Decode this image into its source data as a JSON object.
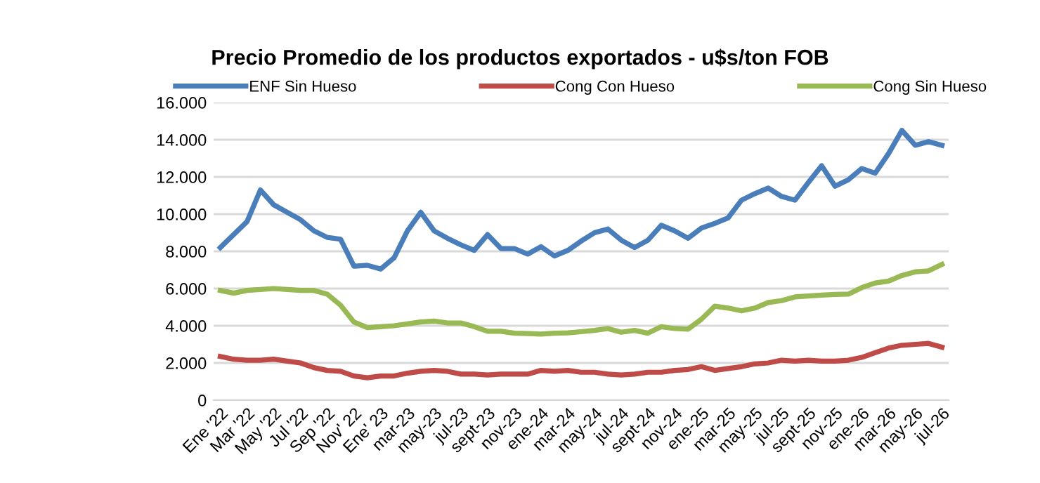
{
  "chart_data": {
    "type": "line",
    "title": "Precio Promedio de los productos exportados - u$s/ton FOB",
    "categories": [
      "Ene '22",
      null,
      "Mar '22",
      null,
      "May '22",
      null,
      "Jul '22",
      null,
      "Sep '22",
      null,
      "Nov' 22",
      null,
      "Ene' 23",
      null,
      "mar-23",
      null,
      "may-23",
      null,
      "jul-23",
      null,
      "sept-23",
      null,
      "nov-23",
      null,
      "ene-24",
      null,
      "mar-24",
      null,
      "may-24",
      null,
      "jul-24",
      null,
      "sept-24",
      null,
      "nov-24",
      null,
      "ene-25",
      null,
      "mar-25",
      null,
      "may-25",
      null,
      "jul-25",
      null,
      "sept-25",
      null,
      "nov-25",
      null,
      "ene-26",
      null,
      "mar-26",
      null,
      "may-26",
      null,
      "jul-26"
    ],
    "series": [
      {
        "name": "ENF Sin Hueso",
        "color": "#4a7ebb",
        "values": [
          8200,
          8900,
          9600,
          11300,
          10500,
          10100,
          9700,
          9100,
          8750,
          8650,
          7200,
          7250,
          7050,
          7650,
          9100,
          10100,
          9100,
          8700,
          8350,
          8050,
          8900,
          8150,
          8150,
          7850,
          8250,
          7750,
          8050,
          8550,
          9000,
          9200,
          8600,
          8200,
          8600,
          9400,
          9100,
          8700,
          9250,
          9500,
          9800,
          10750,
          11100,
          11400,
          10950,
          10750,
          11700,
          12600,
          11500,
          11850,
          12450,
          12200,
          13250,
          14500,
          13700,
          13900,
          13700
        ]
      },
      {
        "name": "Cong Con Hueso",
        "color": "#be4b48",
        "values": [
          2350,
          2200,
          2150,
          2150,
          2200,
          2100,
          2000,
          1750,
          1600,
          1550,
          1300,
          1200,
          1300,
          1300,
          1450,
          1550,
          1600,
          1550,
          1400,
          1400,
          1350,
          1400,
          1400,
          1400,
          1600,
          1550,
          1600,
          1500,
          1500,
          1400,
          1350,
          1400,
          1500,
          1500,
          1600,
          1650,
          1800,
          1600,
          1700,
          1800,
          1950,
          2000,
          2150,
          2100,
          2150,
          2100,
          2100,
          2150,
          2300,
          2550,
          2800,
          2950,
          3000,
          3050,
          2850
        ]
      },
      {
        "name": "Cong Sin Hueso",
        "color": "#98b954",
        "values": [
          5900,
          5750,
          5900,
          5950,
          6000,
          5950,
          5900,
          5900,
          5700,
          5100,
          4200,
          3900,
          3950,
          4000,
          4100,
          4200,
          4250,
          4150,
          4150,
          3950,
          3700,
          3700,
          3600,
          3580,
          3550,
          3600,
          3620,
          3680,
          3750,
          3850,
          3650,
          3750,
          3600,
          3950,
          3850,
          3820,
          4350,
          5050,
          4950,
          4800,
          4950,
          5250,
          5350,
          5550,
          5600,
          5650,
          5680,
          5700,
          6050,
          6300,
          6400,
          6700,
          6900,
          6950,
          7300
        ]
      }
    ],
    "ylim": [
      0,
      16000
    ],
    "yticks": [
      {
        "value": 0,
        "label": "0"
      },
      {
        "value": 2000,
        "label": "2.000"
      },
      {
        "value": 4000,
        "label": "4.000"
      },
      {
        "value": 6000,
        "label": "6.000"
      },
      {
        "value": 8000,
        "label": "8.000"
      },
      {
        "value": 10000,
        "label": "10.000"
      },
      {
        "value": 12000,
        "label": "12.000"
      },
      {
        "value": 14000,
        "label": "14.000"
      },
      {
        "value": 16000,
        "label": "16.000"
      }
    ],
    "grid": "y",
    "legend": "top",
    "marker": "none",
    "line_style": "solid"
  }
}
